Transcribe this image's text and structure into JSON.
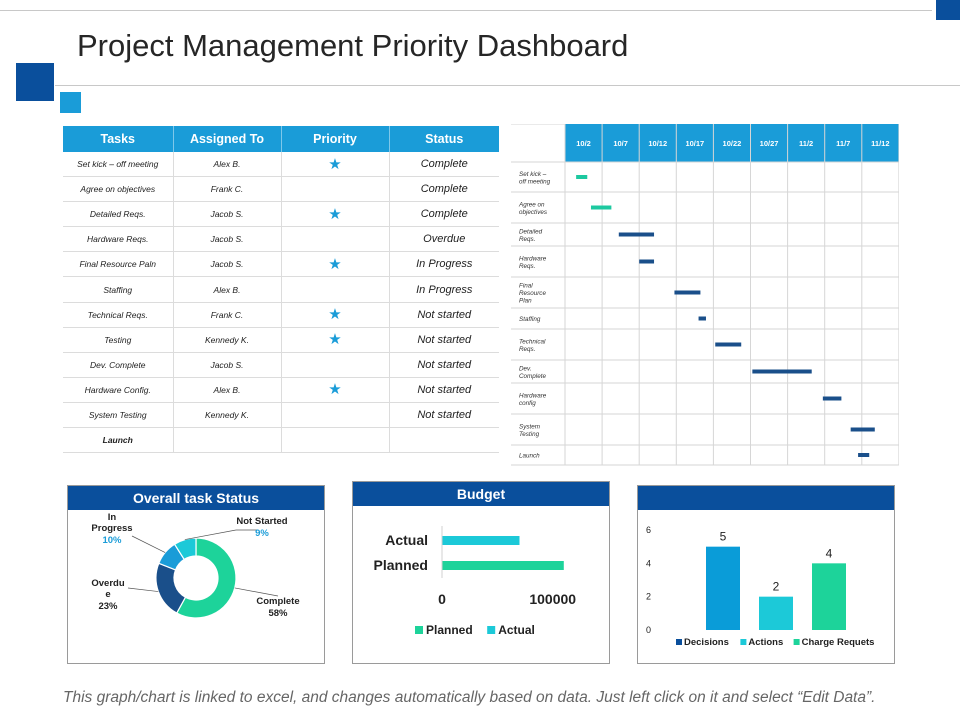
{
  "page": {
    "title": "Project Management Priority Dashboard",
    "footnote": "This graph/chart is linked to excel, and changes automatically based on data. Just left click on it and select “Edit Data”."
  },
  "colors": {
    "dark_blue": "#0a4f9c",
    "accent_blue": "#1a9cd8",
    "teal": "#1cc9c9",
    "green": "#1dd39a",
    "navy_bar": "#1a4f8a"
  },
  "task_table": {
    "headers": [
      "Tasks",
      "Assigned To",
      "Priority",
      "Status"
    ],
    "rows": [
      {
        "task": "Set kick – off meeting",
        "assigned": "Alex B.",
        "priority": true,
        "status": "Complete"
      },
      {
        "task": "Agree on objectives",
        "assigned": "Frank C.",
        "priority": false,
        "status": "Complete"
      },
      {
        "task": "Detailed Reqs.",
        "assigned": "Jacob S.",
        "priority": true,
        "status": "Complete"
      },
      {
        "task": "Hardware Reqs.",
        "assigned": "Jacob S.",
        "priority": false,
        "status": "Overdue"
      },
      {
        "task": "Final Resource Paln",
        "assigned": "Jacob S.",
        "priority": true,
        "status": "In Progress"
      },
      {
        "task": "Staffing",
        "assigned": "Alex B.",
        "priority": false,
        "status": "In Progress"
      },
      {
        "task": "Technical Reqs.",
        "assigned": "Frank C.",
        "priority": true,
        "status": "Not started"
      },
      {
        "task": "Testing",
        "assigned": "Kennedy K.",
        "priority": true,
        "status": "Not started"
      },
      {
        "task": "Dev. Complete",
        "assigned": "Jacob S.",
        "priority": false,
        "status": "Not started"
      },
      {
        "task": "Hardware Config.",
        "assigned": "Alex B.",
        "priority": true,
        "status": "Not started"
      },
      {
        "task": "System Testing",
        "assigned": "Kennedy K.",
        "priority": false,
        "status": "Not started"
      },
      {
        "task": "Launch",
        "assigned": "",
        "priority": false,
        "status": ""
      }
    ]
  },
  "chart_data": [
    {
      "type": "gantt",
      "dates": [
        "10/2",
        "10/7",
        "10/12",
        "10/17",
        "10/22",
        "10/27",
        "11/2",
        "11/7",
        "11/12"
      ],
      "tasks": [
        {
          "label": "Set kick – off meeting",
          "start": 0.3,
          "end": 0.6,
          "color": "#1dc9a0"
        },
        {
          "label": "Agree on objectives",
          "start": 0.7,
          "end": 1.25,
          "color": "#1dc9a0"
        },
        {
          "label": "Detailed Reqs.",
          "start": 1.45,
          "end": 2.4,
          "color": "#1a4f8a"
        },
        {
          "label": "Hardware Reqs.",
          "start": 2.0,
          "end": 2.4,
          "color": "#1a4f8a"
        },
        {
          "label": "Final Resource Plan",
          "start": 2.95,
          "end": 3.65,
          "color": "#1a4f8a"
        },
        {
          "label": "Staffing",
          "start": 3.6,
          "end": 3.8,
          "color": "#1a4f8a"
        },
        {
          "label": "Technical Reqs.",
          "start": 4.05,
          "end": 4.75,
          "color": "#1a4f8a"
        },
        {
          "label": "Dev. Complete",
          "start": 5.05,
          "end": 6.65,
          "color": "#1a4f8a"
        },
        {
          "label": "Hardware config",
          "start": 6.95,
          "end": 7.45,
          "color": "#1a4f8a"
        },
        {
          "label": "System Testing",
          "start": 7.7,
          "end": 8.35,
          "color": "#1a4f8a"
        },
        {
          "label": "Launch",
          "start": 7.9,
          "end": 8.2,
          "color": "#1a4f8a"
        }
      ]
    },
    {
      "type": "pie",
      "title": "Overall task Status",
      "slices": [
        {
          "label": "Complete",
          "value": 58,
          "pct": "58%",
          "color": "#1dd39a"
        },
        {
          "label": "Overdu e",
          "value": 23,
          "pct": "23%",
          "color": "#1a4f8a"
        },
        {
          "label": "In Progress",
          "value": 10,
          "pct": "10%",
          "color": "#1a9cd8"
        },
        {
          "label": "Not Started",
          "value": 9,
          "pct": "9%",
          "color": "#1cc9d8"
        }
      ]
    },
    {
      "type": "bar",
      "orientation": "horizontal",
      "title": "Budget",
      "categories": [
        "Actual",
        "Planned"
      ],
      "series": [
        {
          "name": "Planned",
          "color": "#1dd39a",
          "values": [
            null,
            110000
          ]
        },
        {
          "name": "Actual",
          "color": "#1cc9d8",
          "values": [
            70000,
            null
          ]
        }
      ],
      "xticks": [
        "0",
        "100000"
      ],
      "xlim": [
        0,
        140000
      ],
      "legend": "bottom"
    },
    {
      "type": "bar",
      "title": "",
      "categories": [
        "Decisions",
        "Actions",
        "Charge Requets"
      ],
      "values": [
        5,
        2,
        4
      ],
      "colors": [
        "#0a9cd8",
        "#1cc9d8",
        "#1dd39a"
      ],
      "yticks": [
        "0",
        "2",
        "4",
        "6"
      ],
      "ylim": [
        0,
        6
      ],
      "legend": "bottom"
    }
  ]
}
